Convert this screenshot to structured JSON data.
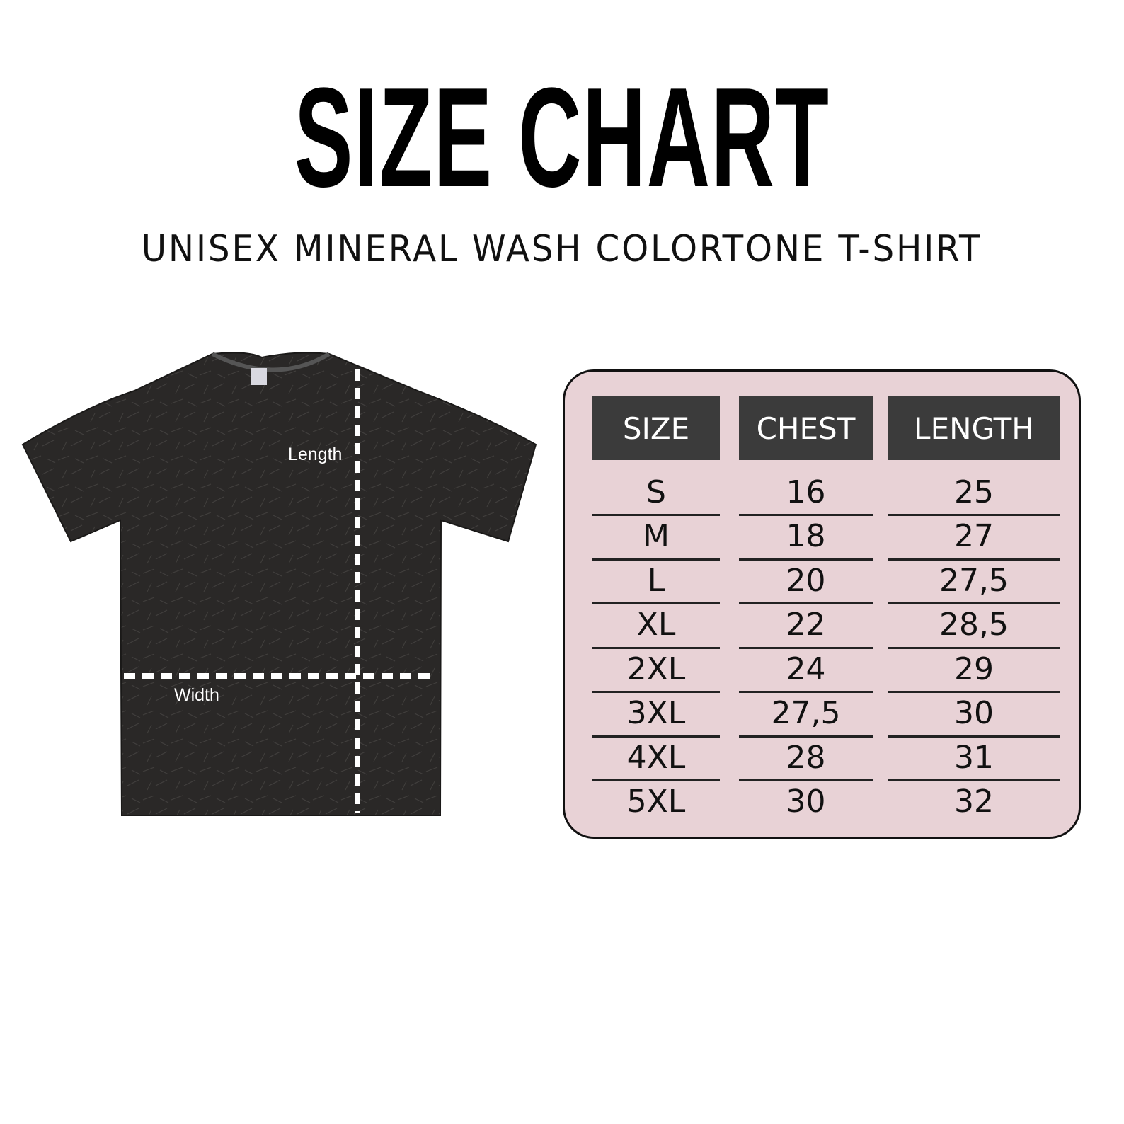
{
  "title": "SIZE CHART",
  "subtitle": "UNISEX MINERAL WASH COLORTONE T-SHIRT",
  "diagram": {
    "length_label": "Length",
    "width_label": "Width"
  },
  "colors": {
    "table_bg": "#e8d2d6",
    "header_bg": "#3b3b3b",
    "shirt": "#2a2827"
  },
  "table": {
    "headers": [
      "SIZE",
      "CHEST",
      "LENGTH"
    ],
    "rows": [
      [
        "S",
        "16",
        "25"
      ],
      [
        "M",
        "18",
        "27"
      ],
      [
        "L",
        "20",
        "27,5"
      ],
      [
        "XL",
        "22",
        "28,5"
      ],
      [
        "2XL",
        "24",
        "29"
      ],
      [
        "3XL",
        "27,5",
        "30"
      ],
      [
        "4XL",
        "28",
        "31"
      ],
      [
        "5XL",
        "30",
        "32"
      ]
    ]
  }
}
